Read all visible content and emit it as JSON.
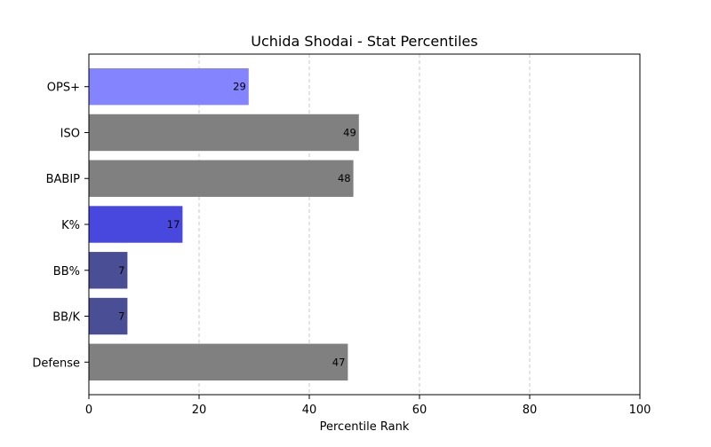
{
  "chart_data": {
    "type": "bar",
    "orientation": "horizontal",
    "title": "Uchida Shodai - Stat Percentiles",
    "xlabel": "Percentile Rank",
    "ylabel": "",
    "categories": [
      "OPS+",
      "ISO",
      "BABIP",
      "K%",
      "BB%",
      "BB/K",
      "Defense"
    ],
    "values": [
      29,
      49,
      48,
      17,
      7,
      7,
      47
    ],
    "value_labels": [
      "29",
      "49",
      "48",
      "17",
      "7",
      "7",
      "47"
    ],
    "bar_colors": [
      "#8484ff",
      "#808080",
      "#808080",
      "#4848df",
      "#4a4e95",
      "#4a4e95",
      "#808080"
    ],
    "xlim": [
      0,
      100
    ],
    "xticks": [
      0,
      20,
      40,
      60,
      80,
      100
    ],
    "xtick_labels": [
      "0",
      "20",
      "40",
      "60",
      "80",
      "100"
    ],
    "grid": {
      "x": true,
      "y": false,
      "style": "dashed",
      "color": "#c8c8c8"
    },
    "legend": "none"
  }
}
